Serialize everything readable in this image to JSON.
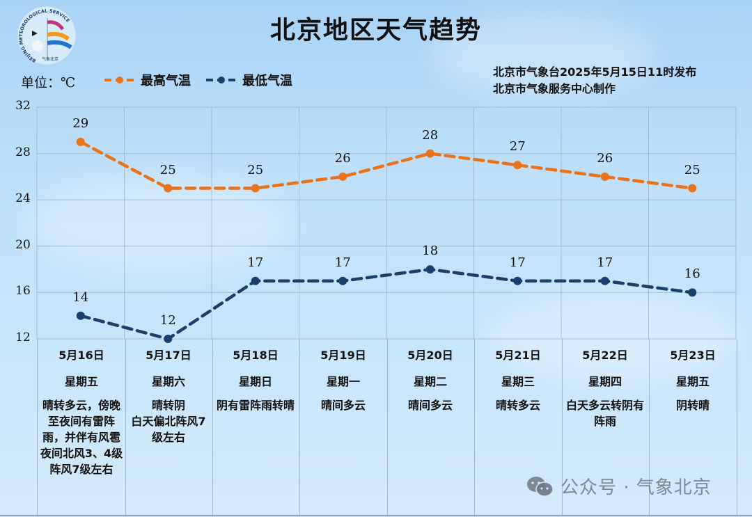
{
  "header": {
    "title": "北京地区天气趋势",
    "unit_label": "单位：℃",
    "issuer_line1": "北京市气象台2025年5月15日11时发布",
    "issuer_line2": "北京市气象服务中心制作",
    "logo": {
      "icon": "beijing-meteorological-service-logo",
      "text_top": "BEIJING METEOROLOGICAL SERVICE",
      "text_bottom": "气象北京"
    }
  },
  "legend": {
    "high_label": "最高气温",
    "low_label": "最低气温"
  },
  "colors": {
    "high": "#e8731a",
    "low": "#1b3f6b",
    "grid": "#93aec4",
    "background": "#bfe0fa"
  },
  "days": [
    {
      "date": "5月16日",
      "weekday": "星期五",
      "weather": "晴转多云，傍晚至夜间有雷阵雨，并伴有风雹\n夜间北风3、4级 阵风7级左右"
    },
    {
      "date": "5月17日",
      "weekday": "星期六",
      "weather": "晴转阴\n白天偏北阵风7级左右"
    },
    {
      "date": "5月18日",
      "weekday": "星期日",
      "weather": "阴有雷阵雨转晴"
    },
    {
      "date": "5月19日",
      "weekday": "星期一",
      "weather": "晴间多云"
    },
    {
      "date": "5月20日",
      "weekday": "星期二",
      "weather": "晴间多云"
    },
    {
      "date": "5月21日",
      "weekday": "星期三",
      "weather": "晴转多云"
    },
    {
      "date": "5月22日",
      "weekday": "星期四",
      "weather": "白天多云转阴有阵雨"
    },
    {
      "date": "5月23日",
      "weekday": "星期五",
      "weather": "阴转晴"
    }
  ],
  "watermark": {
    "icon": "wechat-icon",
    "text": "公众号 · 气象北京"
  },
  "chart_data": {
    "type": "line",
    "title": "北京地区天气趋势",
    "xlabel": "",
    "ylabel": "单位：℃",
    "categories": [
      "5月16日",
      "5月17日",
      "5月18日",
      "5月19日",
      "5月20日",
      "5月21日",
      "5月22日",
      "5月23日"
    ],
    "series": [
      {
        "name": "最高气温",
        "values": [
          29,
          25,
          25,
          26,
          28,
          27,
          26,
          25
        ],
        "color": "#e8731a",
        "style": "dashed",
        "marker": "circle"
      },
      {
        "name": "最低气温",
        "values": [
          14,
          12,
          17,
          17,
          18,
          17,
          17,
          16
        ],
        "color": "#1b3f6b",
        "style": "dashed",
        "marker": "circle"
      }
    ],
    "ylim": [
      12,
      32
    ],
    "yticks": [
      32,
      28,
      24,
      20,
      16,
      12
    ],
    "grid": true,
    "legend_position": "top-left",
    "data_labels": true
  }
}
